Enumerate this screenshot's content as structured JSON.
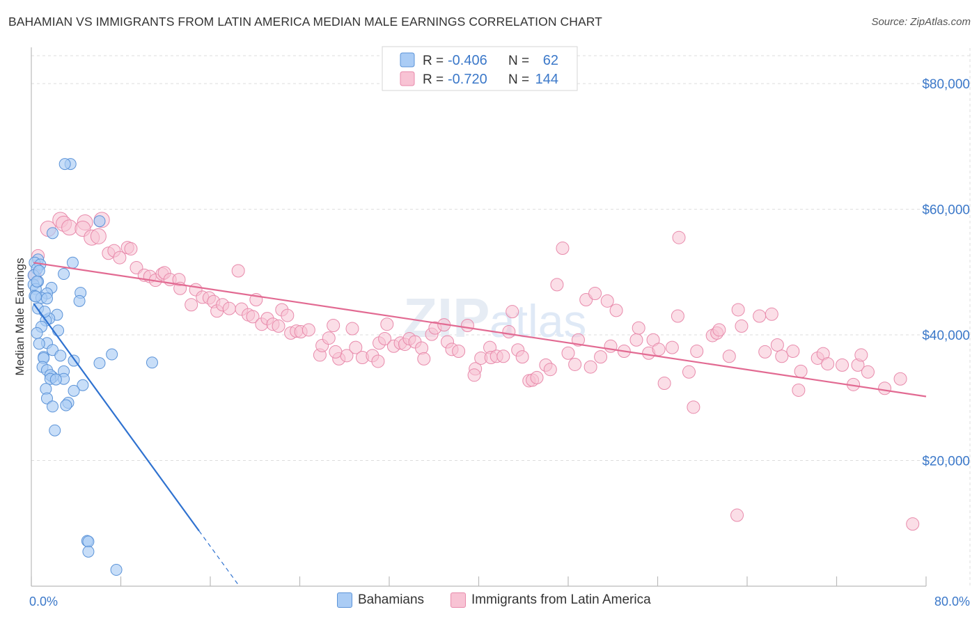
{
  "title": "BAHAMIAN VS IMMIGRANTS FROM LATIN AMERICA MEDIAN MALE EARNINGS CORRELATION CHART",
  "source": "Source: ZipAtlas.com",
  "colors": {
    "blue_fill": "#aaccf5",
    "blue_stroke": "#5b93d8",
    "blue_line": "#2f72d0",
    "pink_fill": "#f8c3d4",
    "pink_stroke": "#e88aab",
    "pink_line": "#e26a92",
    "grid": "#dddddd",
    "tick_label": "#3b78c9"
  },
  "legend": {
    "r_label": "R =",
    "n_label": "N =",
    "rows": [
      {
        "series": "Bahamians",
        "r": "-0.406",
        "n": "62"
      },
      {
        "series": "Immigrants from Latin America",
        "r": "-0.720",
        "n": "144"
      }
    ]
  },
  "bottom_legend": [
    "Bahamians",
    "Immigrants from Latin America"
  ],
  "chart_data": {
    "type": "scatter",
    "title": "BAHAMIAN VS IMMIGRANTS FROM LATIN AMERICA MEDIAN MALE EARNINGS CORRELATION CHART",
    "xlabel": "",
    "ylabel": "Median Male Earnings",
    "xlim": [
      0,
      80
    ],
    "ylim": [
      0,
      85000
    ],
    "x_tick_labels": [
      "0.0%",
      "80.0%"
    ],
    "y_ticks": [
      20000,
      40000,
      60000,
      80000
    ],
    "y_tick_labels": [
      "$20,000",
      "$40,000",
      "$60,000",
      "$80,000"
    ],
    "grid": true,
    "legend_position": "top-center",
    "watermark": "ZIPatlas",
    "series": [
      {
        "name": "Bahamians",
        "r": -0.406,
        "n": 62,
        "trend": {
          "x0": 0.2,
          "y0": 45000,
          "x1": 15.0,
          "y1": 8800,
          "dashed_to_x": 18.5
        },
        "points": [
          [
            3.5,
            67200
          ],
          [
            3.0,
            67200
          ],
          [
            6.1,
            58100
          ],
          [
            1.9,
            56200
          ],
          [
            0.6,
            52000
          ],
          [
            0.3,
            51500
          ],
          [
            0.8,
            51200
          ],
          [
            0.5,
            50500
          ],
          [
            3.7,
            51500
          ],
          [
            0.2,
            49500
          ],
          [
            2.9,
            49700
          ],
          [
            0.6,
            48500
          ],
          [
            0.2,
            48000
          ],
          [
            0.4,
            47300
          ],
          [
            1.8,
            47500
          ],
          [
            0.3,
            46200
          ],
          [
            1.4,
            46600
          ],
          [
            0.9,
            45900
          ],
          [
            4.4,
            46700
          ],
          [
            1.4,
            45800
          ],
          [
            4.3,
            45400
          ],
          [
            0.6,
            44200
          ],
          [
            2.3,
            43200
          ],
          [
            1.6,
            42600
          ],
          [
            1.3,
            42300
          ],
          [
            0.9,
            41300
          ],
          [
            2.4,
            40700
          ],
          [
            0.5,
            40300
          ],
          [
            1.4,
            38700
          ],
          [
            0.7,
            38600
          ],
          [
            1.9,
            37600
          ],
          [
            7.2,
            36900
          ],
          [
            2.6,
            36700
          ],
          [
            1.1,
            36500
          ],
          [
            1.1,
            36300
          ],
          [
            3.8,
            35900
          ],
          [
            10.8,
            35600
          ],
          [
            6.1,
            35500
          ],
          [
            1.0,
            34900
          ],
          [
            1.4,
            34400
          ],
          [
            1.9,
            33300
          ],
          [
            2.9,
            34200
          ],
          [
            1.7,
            33600
          ],
          [
            1.7,
            33000
          ],
          [
            2.9,
            33000
          ],
          [
            2.2,
            32900
          ],
          [
            4.6,
            32000
          ],
          [
            1.3,
            31400
          ],
          [
            3.8,
            31100
          ],
          [
            1.4,
            29900
          ],
          [
            3.3,
            29200
          ],
          [
            3.1,
            28800
          ],
          [
            1.9,
            28600
          ],
          [
            2.1,
            24800
          ],
          [
            5.0,
            7200
          ],
          [
            5.1,
            7100
          ],
          [
            5.1,
            5500
          ],
          [
            7.6,
            2600
          ],
          [
            0.5,
            48500
          ],
          [
            0.7,
            50200
          ],
          [
            0.4,
            46100
          ],
          [
            1.2,
            43700
          ]
        ]
      },
      {
        "name": "Immigrants from Latin America",
        "r": -0.72,
        "n": 144,
        "trend": {
          "x0": 0.2,
          "y0": 51500,
          "x1": 80.0,
          "y1": 30200
        },
        "points": [
          [
            0.6,
            52600
          ],
          [
            0.3,
            49500
          ],
          [
            1.5,
            56900
          ],
          [
            2.6,
            58300
          ],
          [
            2.9,
            57700
          ],
          [
            3.4,
            57100
          ],
          [
            4.8,
            57900
          ],
          [
            6.3,
            58300
          ],
          [
            4.6,
            56900
          ],
          [
            5.4,
            55500
          ],
          [
            6.0,
            55700
          ],
          [
            6.9,
            53000
          ],
          [
            7.4,
            53400
          ],
          [
            7.9,
            52300
          ],
          [
            8.6,
            53900
          ],
          [
            8.9,
            53700
          ],
          [
            9.4,
            50700
          ],
          [
            10.1,
            49500
          ],
          [
            10.6,
            49300
          ],
          [
            11.1,
            48700
          ],
          [
            11.7,
            49700
          ],
          [
            11.9,
            49900
          ],
          [
            12.4,
            48800
          ],
          [
            13.2,
            48800
          ],
          [
            13.3,
            47400
          ],
          [
            14.3,
            44800
          ],
          [
            14.7,
            47200
          ],
          [
            15.3,
            46000
          ],
          [
            15.9,
            45900
          ],
          [
            16.3,
            45300
          ],
          [
            16.6,
            43800
          ],
          [
            17.1,
            44800
          ],
          [
            17.7,
            44200
          ],
          [
            18.5,
            50200
          ],
          [
            18.8,
            44100
          ],
          [
            19.4,
            43200
          ],
          [
            19.8,
            42900
          ],
          [
            20.1,
            45600
          ],
          [
            20.6,
            41700
          ],
          [
            21.1,
            42600
          ],
          [
            21.6,
            41700
          ],
          [
            22.1,
            41400
          ],
          [
            22.4,
            44000
          ],
          [
            22.9,
            43100
          ],
          [
            23.2,
            40300
          ],
          [
            23.7,
            40600
          ],
          [
            24.1,
            40500
          ],
          [
            24.8,
            40800
          ],
          [
            25.8,
            36800
          ],
          [
            26.0,
            38300
          ],
          [
            26.6,
            39500
          ],
          [
            27.0,
            41500
          ],
          [
            27.5,
            36200
          ],
          [
            28.2,
            36700
          ],
          [
            28.7,
            41000
          ],
          [
            29.0,
            38000
          ],
          [
            29.6,
            36400
          ],
          [
            30.5,
            36700
          ],
          [
            31.1,
            38700
          ],
          [
            31.6,
            39400
          ],
          [
            31.8,
            41700
          ],
          [
            32.4,
            38200
          ],
          [
            33.0,
            38700
          ],
          [
            33.4,
            38500
          ],
          [
            33.8,
            39400
          ],
          [
            34.3,
            38900
          ],
          [
            34.9,
            37900
          ],
          [
            35.1,
            36200
          ],
          [
            35.8,
            40100
          ],
          [
            36.1,
            41100
          ],
          [
            36.9,
            41600
          ],
          [
            37.2,
            38900
          ],
          [
            37.6,
            37700
          ],
          [
            38.2,
            37400
          ],
          [
            39.0,
            41500
          ],
          [
            39.7,
            34600
          ],
          [
            40.2,
            36300
          ],
          [
            41.0,
            38000
          ],
          [
            41.1,
            36400
          ],
          [
            41.6,
            36600
          ],
          [
            42.2,
            36600
          ],
          [
            42.7,
            40500
          ],
          [
            43.0,
            43700
          ],
          [
            43.5,
            37600
          ],
          [
            43.9,
            36500
          ],
          [
            44.5,
            32700
          ],
          [
            44.8,
            32800
          ],
          [
            45.2,
            33200
          ],
          [
            46.0,
            35200
          ],
          [
            46.4,
            34500
          ],
          [
            47.0,
            48000
          ],
          [
            47.5,
            53800
          ],
          [
            48.0,
            37100
          ],
          [
            48.6,
            35300
          ],
          [
            48.9,
            39200
          ],
          [
            49.6,
            45600
          ],
          [
            50.0,
            34900
          ],
          [
            50.4,
            46600
          ],
          [
            50.9,
            36500
          ],
          [
            51.5,
            45400
          ],
          [
            51.8,
            38200
          ],
          [
            52.3,
            43900
          ],
          [
            53.0,
            37400
          ],
          [
            54.1,
            39200
          ],
          [
            54.3,
            41100
          ],
          [
            55.2,
            37100
          ],
          [
            55.6,
            39200
          ],
          [
            56.1,
            37700
          ],
          [
            56.6,
            32300
          ],
          [
            57.3,
            38000
          ],
          [
            57.8,
            43000
          ],
          [
            57.9,
            55500
          ],
          [
            58.8,
            34100
          ],
          [
            59.2,
            28500
          ],
          [
            59.5,
            37400
          ],
          [
            60.9,
            39900
          ],
          [
            61.3,
            40300
          ],
          [
            61.5,
            40800
          ],
          [
            62.4,
            36600
          ],
          [
            63.2,
            44000
          ],
          [
            63.5,
            41400
          ],
          [
            65.1,
            43000
          ],
          [
            65.6,
            37300
          ],
          [
            66.2,
            43300
          ],
          [
            66.7,
            38400
          ],
          [
            67.1,
            36600
          ],
          [
            68.1,
            37400
          ],
          [
            68.6,
            31200
          ],
          [
            68.8,
            34200
          ],
          [
            70.3,
            36300
          ],
          [
            70.8,
            37000
          ],
          [
            71.2,
            35400
          ],
          [
            72.5,
            35200
          ],
          [
            73.5,
            32100
          ],
          [
            73.9,
            35200
          ],
          [
            74.2,
            36800
          ],
          [
            74.8,
            34100
          ],
          [
            76.3,
            31500
          ],
          [
            77.7,
            33000
          ],
          [
            78.8,
            9900
          ],
          [
            63.1,
            11300
          ],
          [
            27.2,
            37300
          ],
          [
            39.6,
            33600
          ],
          [
            31.0,
            35800
          ]
        ]
      }
    ]
  }
}
